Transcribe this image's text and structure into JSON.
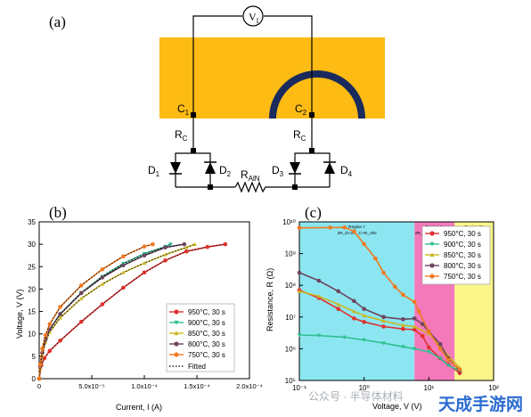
{
  "panel_a": {
    "label": "(a)",
    "voltmeter": {
      "symbol": "V",
      "sub": "I"
    },
    "contact_left": {
      "main": "C",
      "sub": "1"
    },
    "contact_right": {
      "main": "C",
      "sub": "2"
    },
    "rc_left": {
      "main": "R",
      "sub": "C"
    },
    "rc_right": {
      "main": "R",
      "sub": "C"
    },
    "rain": {
      "main": "R",
      "sub": "AlN"
    },
    "diodes": [
      {
        "main": "D",
        "sub": "1"
      },
      {
        "main": "D",
        "sub": "2"
      },
      {
        "main": "D",
        "sub": "3"
      },
      {
        "main": "D",
        "sub": "4"
      }
    ],
    "colors": {
      "substrate": "#FDBB14",
      "electrode": "#1B2A5C",
      "wire": "#000000"
    }
  },
  "chart_data": [
    {
      "panel": "(b)",
      "type": "line",
      "xlabel": "Current, I (A)",
      "ylabel": "Voltage, V (V)",
      "xlim": [
        0,
        0.0002
      ],
      "ylim": [
        0,
        35
      ],
      "xticks": [
        "0",
        "5.0x10⁻⁵",
        "1.0x10⁻⁴",
        "1.5x10⁻⁴",
        "2.0x10⁻⁴"
      ],
      "yticks": [
        "0",
        "5",
        "10",
        "15",
        "20",
        "25",
        "30",
        "35"
      ],
      "legend_position": "bottom-right",
      "fitted_label": "Fitted",
      "series": [
        {
          "name": "950°C, 30 s",
          "color": "#E0312F",
          "marker": "circle",
          "points": [
            [
              0,
              0
            ],
            [
              2e-06,
              3
            ],
            [
              5e-06,
              4.6
            ],
            [
              1e-05,
              6.2
            ],
            [
              2e-05,
              8.5
            ],
            [
              4e-05,
              12.7
            ],
            [
              6e-05,
              16.6
            ],
            [
              8e-05,
              20.3
            ],
            [
              0.0001,
              23.7
            ],
            [
              0.00012,
              26.4
            ],
            [
              0.00014,
              28.4
            ],
            [
              0.00016,
              29.4
            ],
            [
              0.000177,
              30
            ]
          ]
        },
        {
          "name": "900°C, 30 s",
          "color": "#2FBF8F",
          "marker": "triangle-down",
          "points": [
            [
              0,
              0
            ],
            [
              1e-06,
              2.5
            ],
            [
              3e-06,
              5.5
            ],
            [
              6e-06,
              8.6
            ],
            [
              1e-05,
              11
            ],
            [
              2e-05,
              14.5
            ],
            [
              4e-05,
              19.2
            ],
            [
              6e-05,
              22.8
            ],
            [
              8e-05,
              25.7
            ],
            [
              0.0001,
              27.9
            ],
            [
              0.00012,
              29.5
            ],
            [
              0.000125,
              30
            ]
          ]
        },
        {
          "name": "850°C, 30 s",
          "color": "#C9B822",
          "marker": "triangle-up",
          "points": [
            [
              0,
              0
            ],
            [
              1e-06,
              2.3
            ],
            [
              3e-06,
              5.2
            ],
            [
              6e-06,
              8.2
            ],
            [
              1e-05,
              10.4
            ],
            [
              2e-05,
              13.6
            ],
            [
              4e-05,
              17.9
            ],
            [
              6e-05,
              21.1
            ],
            [
              8e-05,
              23.7
            ],
            [
              0.0001,
              25.8
            ],
            [
              0.00012,
              27.7
            ],
            [
              0.00014,
              29.3
            ],
            [
              0.000148,
              30
            ]
          ]
        },
        {
          "name": "800°C, 30 s",
          "color": "#6E4560",
          "marker": "circle",
          "points": [
            [
              0,
              0
            ],
            [
              1e-06,
              2.7
            ],
            [
              3e-06,
              5.8
            ],
            [
              6e-06,
              8.7
            ],
            [
              1e-05,
              11
            ],
            [
              2e-05,
              14.4
            ],
            [
              4e-05,
              19.1
            ],
            [
              6e-05,
              22.6
            ],
            [
              8e-05,
              25.3
            ],
            [
              0.0001,
              27.5
            ],
            [
              0.00012,
              29.3
            ],
            [
              0.000138,
              30
            ]
          ]
        },
        {
          "name": "750°C, 30 s",
          "color": "#F07A20",
          "marker": "circle",
          "points": [
            [
              0,
              0
            ],
            [
              1e-06,
              3.2
            ],
            [
              3e-06,
              6.7
            ],
            [
              6e-06,
              9.7
            ],
            [
              1e-05,
              12.2
            ],
            [
              2e-05,
              16
            ],
            [
              4e-05,
              20.8
            ],
            [
              6e-05,
              24.4
            ],
            [
              8e-05,
              27.3
            ],
            [
              0.0001,
              29.5
            ],
            [
              0.000108,
              30
            ]
          ]
        }
      ]
    },
    {
      "panel": "(c)",
      "type": "line",
      "xlabel": "Voltage, V (V)",
      "ylabel": "Resistance, R (Ω)",
      "x_scale": "log",
      "y_scale": "log",
      "xlim": [
        0.1,
        100
      ],
      "ylim": [
        100000,
        10000000000
      ],
      "xticks": [
        "10⁻¹",
        "10⁰",
        "10¹",
        "10²"
      ],
      "yticks": [
        "10⁵",
        "10⁶",
        "10⁷",
        "10⁸",
        "10⁹",
        "10¹⁰"
      ],
      "legend_position": "top-right",
      "regions": [
        {
          "title": "Region I:",
          "formula": "2R_D+2R_C+R_AlN",
          "from": 0.1,
          "to": 6,
          "color": "#7FE3F0"
        },
        {
          "title": "Region II:",
          "formula": "2R_D+2R_C+R_AlN",
          "from": 6,
          "to": 25,
          "color": "#F36AB4"
        },
        {
          "title": "Region III:",
          "formula": "2R_C+R_AlN",
          "from": 25,
          "to": 100,
          "color": "#FAF57C"
        }
      ],
      "series": [
        {
          "name": "950°C, 30 s",
          "color": "#E0312F",
          "marker": "circle",
          "points": [
            [
              0.1,
              70000000
            ],
            [
              0.2,
              40000000
            ],
            [
              0.4,
              18000000
            ],
            [
              0.7,
              9000000
            ],
            [
              1,
              7000000
            ],
            [
              2,
              5000000
            ],
            [
              4,
              4200000
            ],
            [
              6,
              4000000
            ],
            [
              8,
              2500000
            ],
            [
              10,
              1100000
            ],
            [
              15,
              500000
            ],
            [
              20,
              320000
            ],
            [
              30,
              170000
            ]
          ]
        },
        {
          "name": "900°C, 30 s",
          "color": "#2FBF8F",
          "marker": "triangle-down",
          "points": [
            [
              0.1,
              2700000
            ],
            [
              0.2,
              2600000
            ],
            [
              0.5,
              2300000
            ],
            [
              1,
              1900000
            ],
            [
              2,
              1500000
            ],
            [
              4,
              1150000
            ],
            [
              6,
              1000000
            ],
            [
              10,
              800000
            ],
            [
              15,
              500000
            ],
            [
              20,
              300000
            ],
            [
              30,
              200000
            ]
          ]
        },
        {
          "name": "850°C, 30 s",
          "color": "#C9B822",
          "marker": "triangle-up",
          "points": [
            [
              0.1,
              65000000
            ],
            [
              0.2,
              45000000
            ],
            [
              0.4,
              25000000
            ],
            [
              0.7,
              15000000
            ],
            [
              1,
              11000000
            ],
            [
              2,
              7500000
            ],
            [
              4,
              5500000
            ],
            [
              6,
              5000000
            ],
            [
              10,
              3000000
            ],
            [
              15,
              1300000
            ],
            [
              20,
              600000
            ],
            [
              30,
              250000
            ]
          ]
        },
        {
          "name": "800°C, 30 s",
          "color": "#6E4560",
          "marker": "circle",
          "points": [
            [
              0.1,
              250000000
            ],
            [
              0.2,
              140000000
            ],
            [
              0.4,
              65000000
            ],
            [
              0.7,
              32000000
            ],
            [
              1,
              18000000
            ],
            [
              2,
              10000000
            ],
            [
              4,
              8500000
            ],
            [
              6,
              9000000
            ],
            [
              8,
              6000000
            ],
            [
              10,
              3500000
            ],
            [
              15,
              1400000
            ],
            [
              20,
              500000
            ],
            [
              30,
              200000
            ]
          ]
        },
        {
          "name": "750°C, 30 s",
          "color": "#F07A20",
          "marker": "circle",
          "points": [
            [
              0.1,
              6500000000
            ],
            [
              0.3,
              6600000000
            ],
            [
              0.5,
              6700000000
            ],
            [
              0.7,
              5000000000
            ],
            [
              1,
              2000000000
            ],
            [
              1.5,
              700000000
            ],
            [
              2,
              250000000
            ],
            [
              3,
              90000000
            ],
            [
              4,
              50000000
            ],
            [
              6,
              30000000
            ],
            [
              7,
              15000000
            ],
            [
              10,
              3500000
            ],
            [
              15,
              1000000
            ],
            [
              20,
              450000
            ],
            [
              30,
              220000
            ]
          ]
        }
      ]
    }
  ],
  "watermark": "公众号 · 半导体材料",
  "logo": "天成手游网"
}
